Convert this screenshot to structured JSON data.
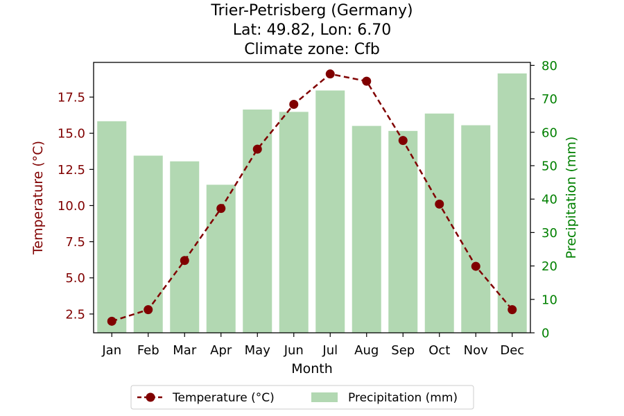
{
  "chart_data": {
    "type": "bar+line",
    "title": [
      "Trier-Petrisberg (Germany)",
      "Lat: 49.82, Lon: 6.70",
      "Climate zone: Cfb"
    ],
    "xlabel": "Month",
    "ylabel_left": "Temperature (°C)",
    "ylabel_right": "Precipitation (mm)",
    "categories": [
      "Jan",
      "Feb",
      "Mar",
      "Apr",
      "May",
      "Jun",
      "Jul",
      "Aug",
      "Sep",
      "Oct",
      "Nov",
      "Dec"
    ],
    "temperature": {
      "name": "Temperature (°C)",
      "values": [
        2.0,
        2.8,
        6.2,
        9.8,
        13.9,
        17.0,
        19.1,
        18.6,
        14.5,
        10.1,
        5.8,
        2.8
      ],
      "color": "#800000",
      "style": "dashed line with circle markers"
    },
    "precipitation": {
      "name": "Precipitation (mm)",
      "values": [
        63.3,
        53.0,
        51.3,
        44.3,
        66.8,
        66.1,
        72.5,
        61.9,
        60.4,
        65.6,
        62.1,
        77.6
      ],
      "color": "#b2d8b2"
    },
    "ylim_left": [
      1.2,
      19.9
    ],
    "ylim_right": [
      0,
      80.9
    ],
    "yticks_left": [
      "2.5",
      "5.0",
      "7.5",
      "10.0",
      "12.5",
      "15.0",
      "17.5"
    ],
    "yticks_right": [
      "0",
      "10",
      "20",
      "30",
      "40",
      "50",
      "60",
      "70",
      "80"
    ],
    "left_axis_color": "#800000",
    "right_axis_color": "#008000",
    "grid": false,
    "legend_placement": "below-center"
  }
}
